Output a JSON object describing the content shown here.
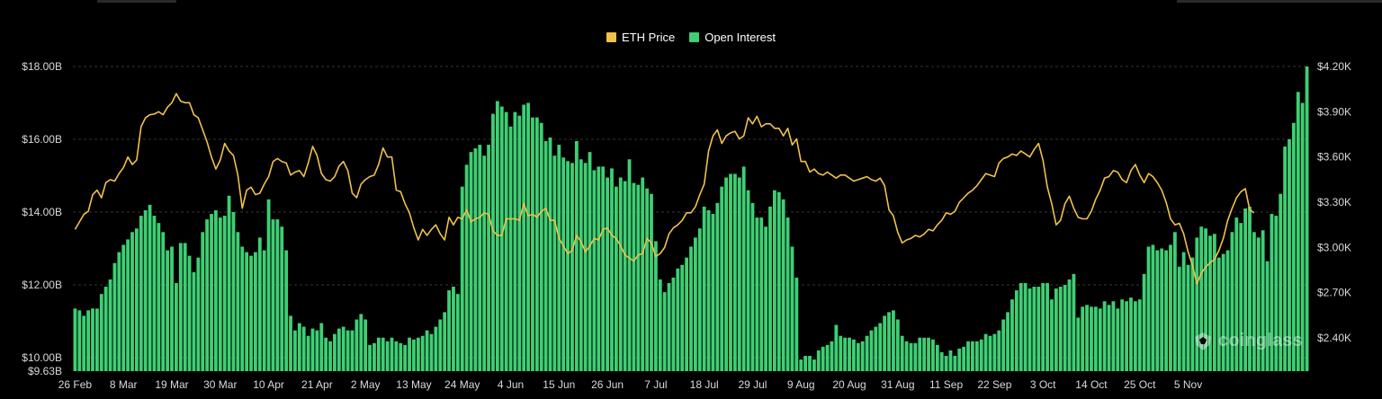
{
  "colors": {
    "background": "#000000",
    "price_line": "#f0c14b",
    "open_interest_bar": "#3ecf74",
    "grid": "#333333",
    "tick_text": "#d9d9d9"
  },
  "legend": {
    "price_label": "ETH Price",
    "oi_label": "Open Interest"
  },
  "watermark": {
    "text": "coinglass"
  },
  "chart_data": {
    "type": "bar",
    "left_axis": {
      "ticks": [
        {
          "v": 10,
          "label": "$10.00B"
        },
        {
          "v": 12,
          "label": "$12.00B"
        },
        {
          "v": 14,
          "label": "$14.00B"
        },
        {
          "v": 16,
          "label": "$16.00B"
        },
        {
          "v": 18,
          "label": "$18.00B"
        }
      ],
      "min_label": "$9.63B",
      "range": [
        9.63,
        18.0
      ]
    },
    "right_axis": {
      "ticks": [
        {
          "v": 2400,
          "label": "$2.40K"
        },
        {
          "v": 2700,
          "label": "$2.70K"
        },
        {
          "v": 3000,
          "label": "$3.00K"
        },
        {
          "v": 3300,
          "label": "$3.30K"
        },
        {
          "v": 3600,
          "label": "$3.60K"
        },
        {
          "v": 3900,
          "label": "$3.90K"
        },
        {
          "v": 4200,
          "label": "$4.20K"
        }
      ],
      "range": [
        2180,
        4200
      ]
    },
    "x_ticks": [
      {
        "i": 0,
        "label": "26 Feb"
      },
      {
        "i": 11,
        "label": "8 Mar"
      },
      {
        "i": 22,
        "label": "19 Mar"
      },
      {
        "i": 33,
        "label": "30 Mar"
      },
      {
        "i": 44,
        "label": "10 Apr"
      },
      {
        "i": 55,
        "label": "21 Apr"
      },
      {
        "i": 66,
        "label": "2 May"
      },
      {
        "i": 77,
        "label": "13 May"
      },
      {
        "i": 88,
        "label": "24 May"
      },
      {
        "i": 99,
        "label": "4 Jun"
      },
      {
        "i": 110,
        "label": "15 Jun"
      },
      {
        "i": 121,
        "label": "26 Jun"
      },
      {
        "i": 132,
        "label": "7 Jul"
      },
      {
        "i": 143,
        "label": "18 Jul"
      },
      {
        "i": 154,
        "label": "29 Jul"
      },
      {
        "i": 165,
        "label": "9 Aug"
      },
      {
        "i": 176,
        "label": "20 Aug"
      },
      {
        "i": 187,
        "label": "31 Aug"
      },
      {
        "i": 198,
        "label": "11 Sep"
      },
      {
        "i": 209,
        "label": "22 Sep"
      },
      {
        "i": 220,
        "label": "3 Oct"
      },
      {
        "i": 231,
        "label": "14 Oct"
      },
      {
        "i": 242,
        "label": "25 Oct"
      },
      {
        "i": 253,
        "label": "5 Nov"
      }
    ],
    "series": [
      {
        "name": "Open Interest",
        "axis": "left",
        "values": [
          11.35,
          11.3,
          11.15,
          11.3,
          11.35,
          11.35,
          11.75,
          11.95,
          12.15,
          12.6,
          12.9,
          13.1,
          13.25,
          13.45,
          13.55,
          13.9,
          14.05,
          14.2,
          13.9,
          13.7,
          13.45,
          12.95,
          13.05,
          12.05,
          13.15,
          13.15,
          12.8,
          12.35,
          12.75,
          13.45,
          13.8,
          13.95,
          14.05,
          13.85,
          13.9,
          14.45,
          14.0,
          13.45,
          13.05,
          12.9,
          12.8,
          12.9,
          13.3,
          12.95,
          14.35,
          13.8,
          13.8,
          13.6,
          12.95,
          11.15,
          10.75,
          10.95,
          10.85,
          10.6,
          10.8,
          10.75,
          10.95,
          10.55,
          10.45,
          10.65,
          10.8,
          10.85,
          10.75,
          10.75,
          11.05,
          11.2,
          11.05,
          10.35,
          10.4,
          10.55,
          10.55,
          10.45,
          10.55,
          10.45,
          10.4,
          10.35,
          10.55,
          10.5,
          10.55,
          10.6,
          10.75,
          10.65,
          10.85,
          11.05,
          11.25,
          11.85,
          11.95,
          11.75,
          14.7,
          15.3,
          15.65,
          15.75,
          15.85,
          15.55,
          15.85,
          16.7,
          17.05,
          16.9,
          16.75,
          16.35,
          16.75,
          16.65,
          16.95,
          17.0,
          16.6,
          16.6,
          16.45,
          15.95,
          16.05,
          15.55,
          15.85,
          15.5,
          15.4,
          15.35,
          15.95,
          15.45,
          15.35,
          15.65,
          15.15,
          15.25,
          15.25,
          14.95,
          15.2,
          14.7,
          14.95,
          14.85,
          15.45,
          14.8,
          14.75,
          14.95,
          14.65,
          14.5,
          13.2,
          12.15,
          11.8,
          12.05,
          12.2,
          12.45,
          12.55,
          12.75,
          13.05,
          13.3,
          13.55,
          14.15,
          14.05,
          13.95,
          14.25,
          14.7,
          14.95,
          15.05,
          15.05,
          14.95,
          15.25,
          14.6,
          14.25,
          13.85,
          13.85,
          13.6,
          14.15,
          14.6,
          14.55,
          14.35,
          13.85,
          13.05,
          12.2,
          9.95,
          10.05,
          10.05,
          9.95,
          10.2,
          10.3,
          10.35,
          10.45,
          10.9,
          10.6,
          10.55,
          10.55,
          10.5,
          10.4,
          10.45,
          10.6,
          10.75,
          10.85,
          10.95,
          11.15,
          11.25,
          11.3,
          11.05,
          10.6,
          10.45,
          10.4,
          10.4,
          10.55,
          10.55,
          10.55,
          10.5,
          10.35,
          10.15,
          10.05,
          10.2,
          10.05,
          10.25,
          10.3,
          10.45,
          10.45,
          10.45,
          10.5,
          10.65,
          10.6,
          10.65,
          10.75,
          11.05,
          11.25,
          11.6,
          11.85,
          12.05,
          12.05,
          11.9,
          11.95,
          11.95,
          12.05,
          12.05,
          11.6,
          11.9,
          11.95,
          12.0,
          12.15,
          12.3,
          11.1,
          11.4,
          11.45,
          11.4,
          11.4,
          11.35,
          11.55,
          11.45,
          11.55,
          11.35,
          11.6,
          11.55,
          11.65,
          11.55,
          11.6,
          12.3,
          13.05,
          13.1,
          12.95,
          13.0,
          12.95,
          13.1,
          13.45,
          12.5,
          12.9,
          12.55,
          12.75,
          13.3,
          13.6,
          13.55,
          13.35,
          13.4,
          12.75,
          12.85,
          12.95,
          13.45,
          13.85,
          13.7,
          14.1,
          14.15,
          13.45,
          13.3,
          13.5,
          12.65,
          13.95,
          13.9,
          14.5,
          15.8,
          16.0,
          16.45,
          17.3,
          17.0,
          18.0
        ]
      },
      {
        "name": "ETH Price",
        "axis": "right",
        "values": [
          3120,
          3170,
          3220,
          3240,
          3350,
          3380,
          3330,
          3430,
          3450,
          3440,
          3490,
          3530,
          3600,
          3550,
          3580,
          3800,
          3860,
          3880,
          3885,
          3900,
          3880,
          3930,
          3960,
          4020,
          3970,
          3960,
          3960,
          3880,
          3860,
          3780,
          3700,
          3600,
          3520,
          3580,
          3690,
          3640,
          3610,
          3480,
          3260,
          3380,
          3400,
          3350,
          3360,
          3420,
          3470,
          3570,
          3590,
          3570,
          3560,
          3480,
          3500,
          3510,
          3470,
          3560,
          3670,
          3610,
          3490,
          3450,
          3440,
          3470,
          3540,
          3570,
          3510,
          3360,
          3330,
          3420,
          3450,
          3470,
          3480,
          3550,
          3660,
          3600,
          3600,
          3380,
          3370,
          3290,
          3230,
          3130,
          3050,
          3120,
          3080,
          3120,
          3150,
          3090,
          3050,
          3200,
          3150,
          3200,
          3190,
          3250,
          3170,
          3190,
          3200,
          3230,
          3220,
          3110,
          3080,
          3080,
          3190,
          3190,
          3190,
          3180,
          3290,
          3210,
          3220,
          3200,
          3240,
          3260,
          3180,
          3180,
          3060,
          3010,
          2960,
          2980,
          3080,
          3040,
          2970,
          3010,
          3060,
          3050,
          3120,
          3130,
          3080,
          3060,
          3010,
          2950,
          2930,
          2910,
          2950,
          2960,
          3060,
          3030,
          2940,
          2960,
          3000,
          3090,
          3130,
          3150,
          3180,
          3230,
          3230,
          3270,
          3350,
          3420,
          3640,
          3740,
          3780,
          3690,
          3740,
          3760,
          3770,
          3720,
          3740,
          3860,
          3820,
          3870,
          3800,
          3820,
          3820,
          3790,
          3790,
          3740,
          3790,
          3680,
          3720,
          3570,
          3570,
          3500,
          3520,
          3490,
          3480,
          3500,
          3480,
          3460,
          3480,
          3480,
          3460,
          3440,
          3450,
          3460,
          3470,
          3450,
          3440,
          3460,
          3410,
          3250,
          3210,
          3100,
          3030,
          3050,
          3060,
          3080,
          3070,
          3090,
          3120,
          3110,
          3150,
          3180,
          3230,
          3220,
          3240,
          3300,
          3330,
          3360,
          3380,
          3410,
          3450,
          3490,
          3480,
          3470,
          3560,
          3590,
          3600,
          3620,
          3610,
          3640,
          3620,
          3600,
          3650,
          3690,
          3580,
          3400,
          3290,
          3150,
          3180,
          3290,
          3340,
          3260,
          3200,
          3190,
          3190,
          3240,
          3320,
          3380,
          3460,
          3470,
          3510,
          3500,
          3450,
          3430,
          3510,
          3550,
          3480,
          3430,
          3490,
          3470,
          3430,
          3380,
          3300,
          3190,
          3150,
          3160,
          3090,
          2970,
          2880,
          2760,
          2830,
          2870,
          2900,
          2920,
          2980,
          3060,
          3180,
          3260,
          3330,
          3370,
          3390,
          3250,
          3230
        ]
      }
    ],
    "ylabel_left": "",
    "ylabel_right": "",
    "xlabel": "",
    "title": "",
    "legend_position": "top-center",
    "grid": true
  }
}
